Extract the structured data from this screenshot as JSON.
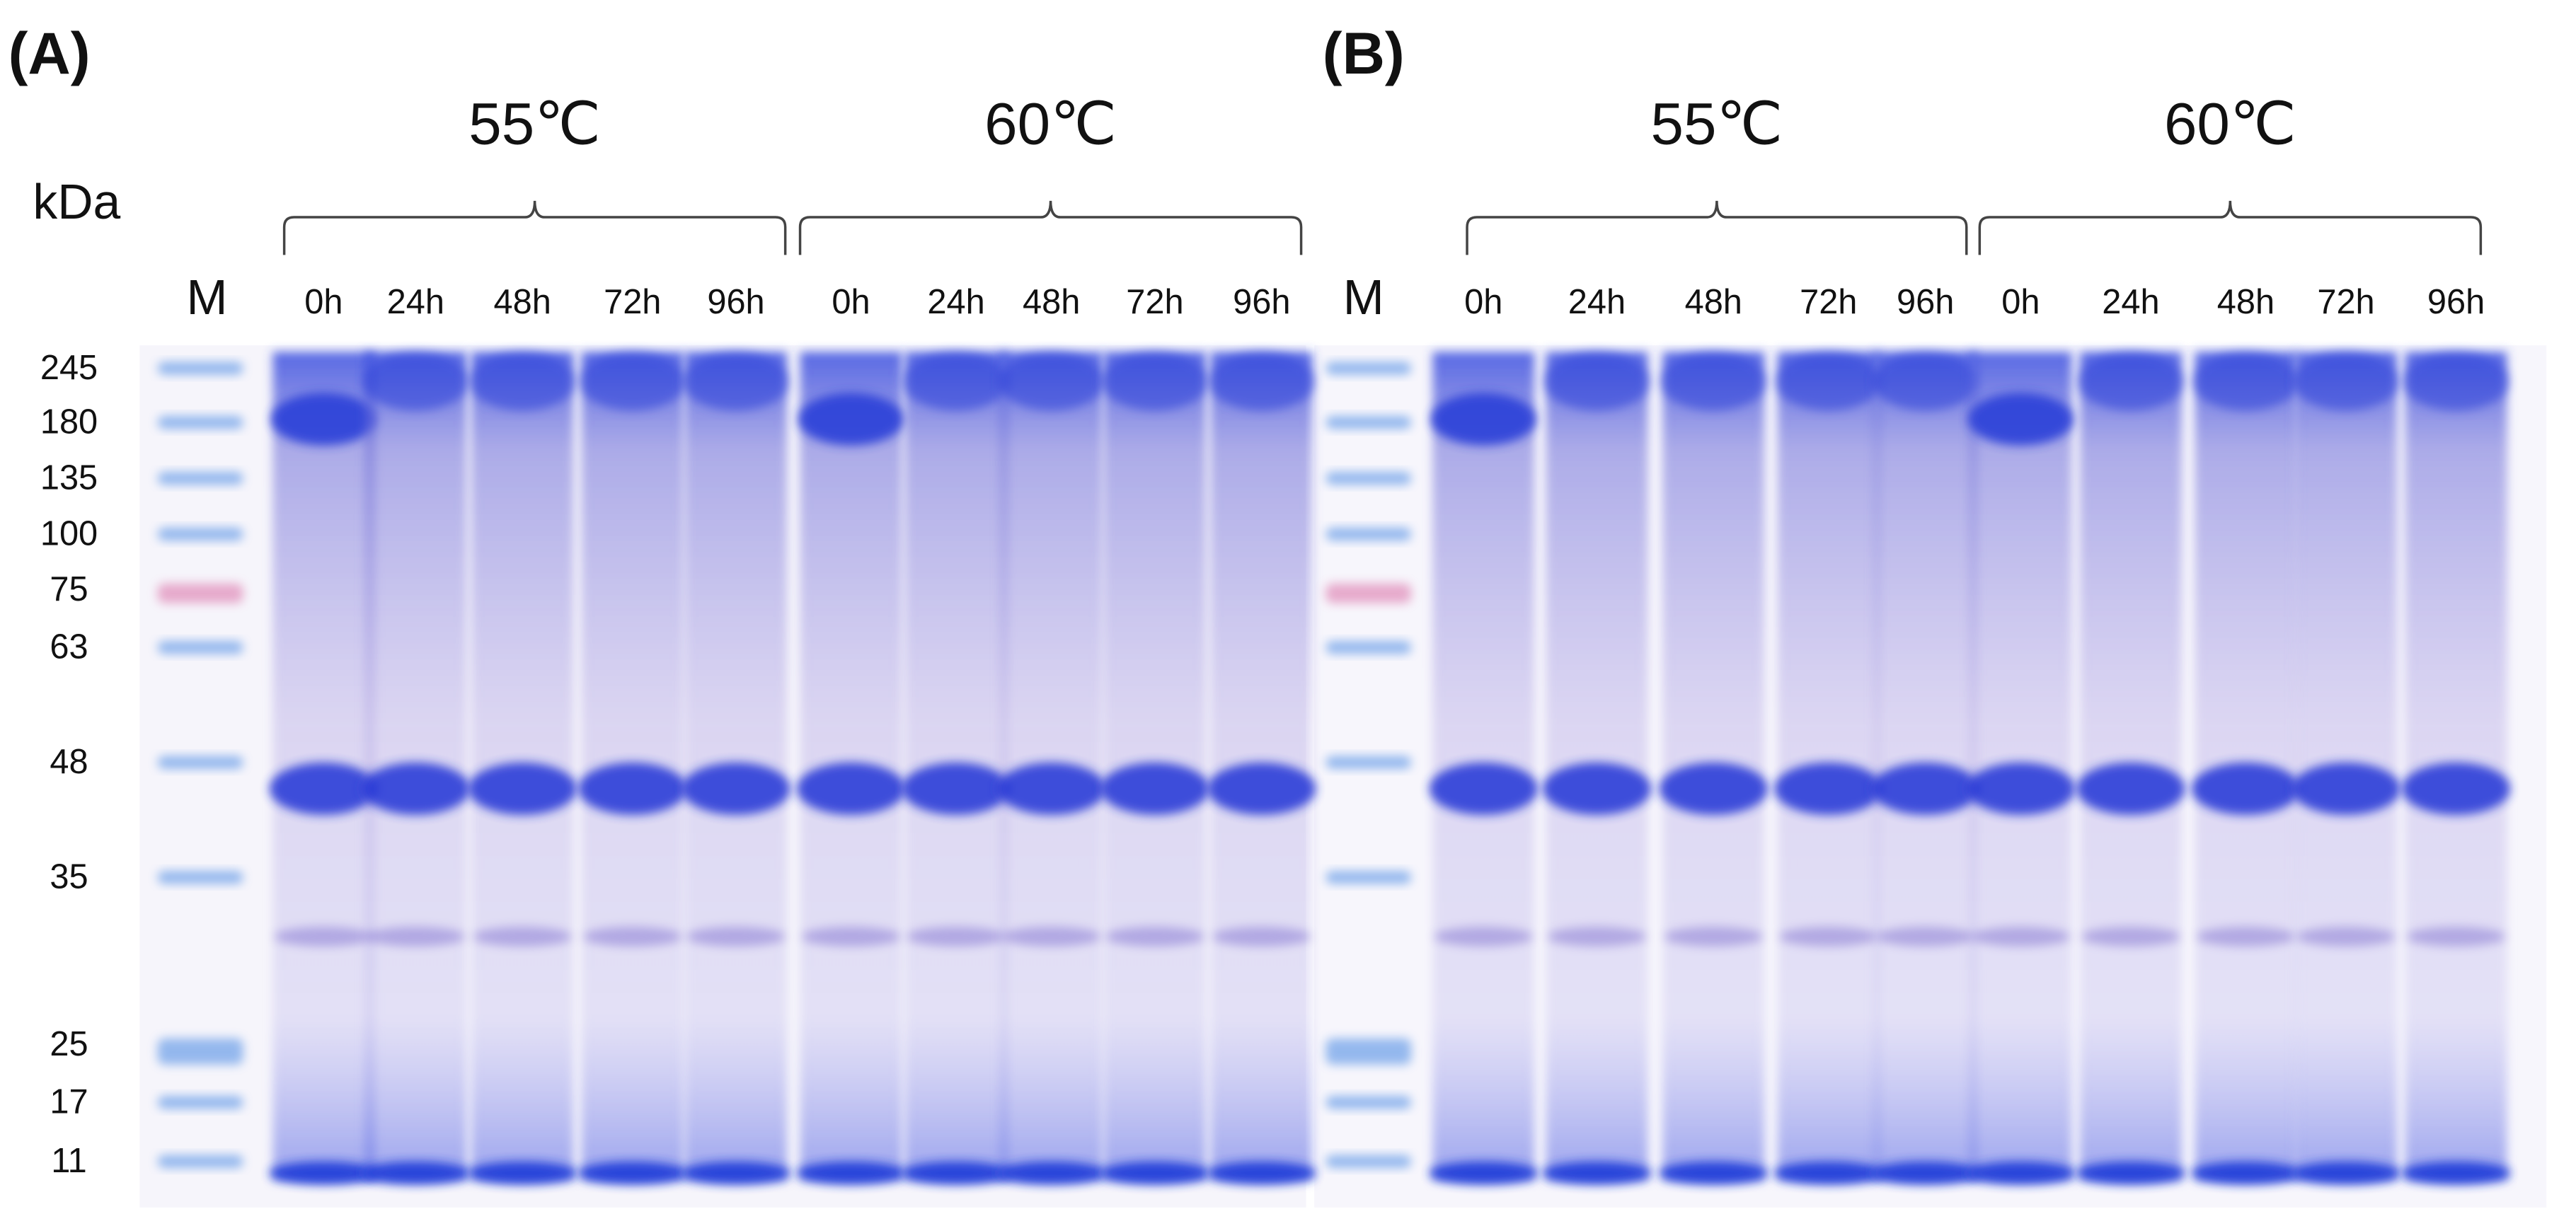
{
  "panels": [
    {
      "label": "(A)",
      "unit": "kDa",
      "marker_label": "M",
      "groups": [
        {
          "label": "55℃",
          "lanes": [
            "0h",
            "24h",
            "48h",
            "72h",
            "96h"
          ]
        },
        {
          "label": "60℃",
          "lanes": [
            "0h",
            "24h",
            "48h",
            "72h",
            "96h"
          ]
        }
      ],
      "markers": [
        "245",
        "180",
        "135",
        "100",
        "75",
        "63",
        "48",
        "35",
        "25",
        "17",
        "11"
      ]
    },
    {
      "label": "(B)",
      "marker_label": "M",
      "groups": [
        {
          "label": "55℃",
          "lanes": [
            "0h",
            "24h",
            "48h",
            "72h",
            "96h"
          ]
        },
        {
          "label": "60℃",
          "lanes": [
            "0h",
            "24h",
            "48h",
            "72h",
            "96h"
          ]
        }
      ]
    }
  ]
}
